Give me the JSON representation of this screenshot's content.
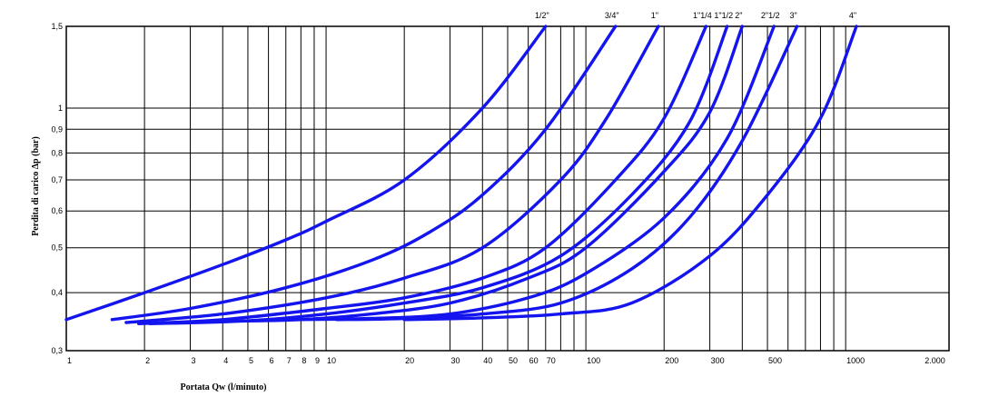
{
  "chart_data": {
    "type": "line",
    "title": "",
    "xlabel": "Portata Qw (l/minuto)",
    "ylabel": "Perdita di carico Δp (bar)",
    "x_scale": "log",
    "y_scale": "log",
    "xlim": [
      1,
      2500
    ],
    "ylim": [
      0.3,
      1.5
    ],
    "grid": true,
    "x_gridlines": [
      2,
      3,
      4,
      5,
      6,
      7,
      8,
      9,
      10,
      20,
      30,
      40,
      50,
      60,
      70,
      80,
      90,
      100,
      200,
      300,
      400,
      500,
      600,
      700,
      800,
      900,
      1000
    ],
    "y_gridlines": [
      0.4,
      0.5,
      0.6,
      0.7,
      0.8,
      0.9,
      1.0
    ],
    "x_ticks": [
      {
        "v": 1,
        "label": "1"
      },
      {
        "v": 2,
        "label": "2"
      },
      {
        "v": 3,
        "label": "3"
      },
      {
        "v": 4,
        "label": "4"
      },
      {
        "v": 5,
        "label": "5"
      },
      {
        "v": 6,
        "label": "6"
      },
      {
        "v": 7,
        "label": "7"
      },
      {
        "v": 8,
        "label": "8"
      },
      {
        "v": 9,
        "label": "9"
      },
      {
        "v": 10,
        "label": "10"
      },
      {
        "v": 20,
        "label": "20"
      },
      {
        "v": 30,
        "label": "30"
      },
      {
        "v": 40,
        "label": "40"
      },
      {
        "v": 50,
        "label": "50"
      },
      {
        "v": 60,
        "label": "60"
      },
      {
        "v": 70,
        "label": "70"
      },
      {
        "v": 100,
        "label": "100"
      },
      {
        "v": 200,
        "label": "200"
      },
      {
        "v": 300,
        "label": "300"
      },
      {
        "v": 500,
        "label": "500"
      },
      {
        "v": 1000,
        "label": "1000"
      },
      {
        "v": 2000,
        "label": "2.000"
      }
    ],
    "y_ticks": [
      {
        "v": 0.3,
        "label": "0,3"
      },
      {
        "v": 0.4,
        "label": "0,4"
      },
      {
        "v": 0.5,
        "label": "0,5"
      },
      {
        "v": 0.6,
        "label": "0,6"
      },
      {
        "v": 0.7,
        "label": "0,7"
      },
      {
        "v": 0.8,
        "label": "0,8"
      },
      {
        "v": 0.9,
        "label": "0,9"
      },
      {
        "v": 1.0,
        "label": "1"
      },
      {
        "v": 1.5,
        "label": "1,5"
      }
    ],
    "series": [
      {
        "name": "1/2\"",
        "x": [
          1,
          2,
          4,
          7,
          10,
          20,
          40,
          70
        ],
        "y": [
          0.35,
          0.4,
          0.46,
          0.52,
          0.57,
          0.7,
          1.0,
          1.5
        ]
      },
      {
        "name": "3/4\"",
        "x": [
          1.5,
          3,
          7,
          15,
          25,
          40,
          70,
          130
        ],
        "y": [
          0.35,
          0.37,
          0.41,
          0.47,
          0.54,
          0.65,
          0.9,
          1.5
        ]
      },
      {
        "name": "1\"",
        "x": [
          1.7,
          4,
          10,
          20,
          40,
          80,
          120,
          190
        ],
        "y": [
          0.345,
          0.36,
          0.39,
          0.43,
          0.5,
          0.7,
          0.95,
          1.5
        ]
      },
      {
        "name": "1\"1/4",
        "x": [
          1.9,
          4,
          10,
          20,
          40,
          70,
          130,
          200,
          290
        ],
        "y": [
          0.343,
          0.35,
          0.37,
          0.39,
          0.43,
          0.5,
          0.7,
          0.95,
          1.5
        ]
      },
      {
        "name": "1\"1/2",
        "x": [
          2.1,
          5,
          10,
          20,
          40,
          80,
          150,
          250,
          350
        ],
        "y": [
          0.343,
          0.348,
          0.36,
          0.38,
          0.41,
          0.48,
          0.65,
          0.93,
          1.5
        ]
      },
      {
        "name": "2\"",
        "x": [
          4,
          8,
          15,
          30,
          60,
          100,
          200,
          300,
          400
        ],
        "y": [
          0.347,
          0.35,
          0.36,
          0.38,
          0.43,
          0.5,
          0.73,
          0.98,
          1.5
        ]
      },
      {
        "name": "2\"1/2",
        "x": [
          7,
          15,
          30,
          60,
          100,
          200,
          350,
          530
        ],
        "y": [
          0.35,
          0.352,
          0.36,
          0.39,
          0.44,
          0.58,
          0.86,
          1.5
        ]
      },
      {
        "name": "3\"",
        "x": [
          11,
          20,
          40,
          80,
          150,
          250,
          400,
          650
        ],
        "y": [
          0.35,
          0.352,
          0.36,
          0.38,
          0.45,
          0.58,
          0.85,
          1.5
        ]
      },
      {
        "name": "4\"",
        "x": [
          20,
          40,
          80,
          150,
          300,
          500,
          800,
          1100
        ],
        "y": [
          0.35,
          0.353,
          0.36,
          0.38,
          0.48,
          0.65,
          0.95,
          1.5
        ]
      }
    ]
  }
}
